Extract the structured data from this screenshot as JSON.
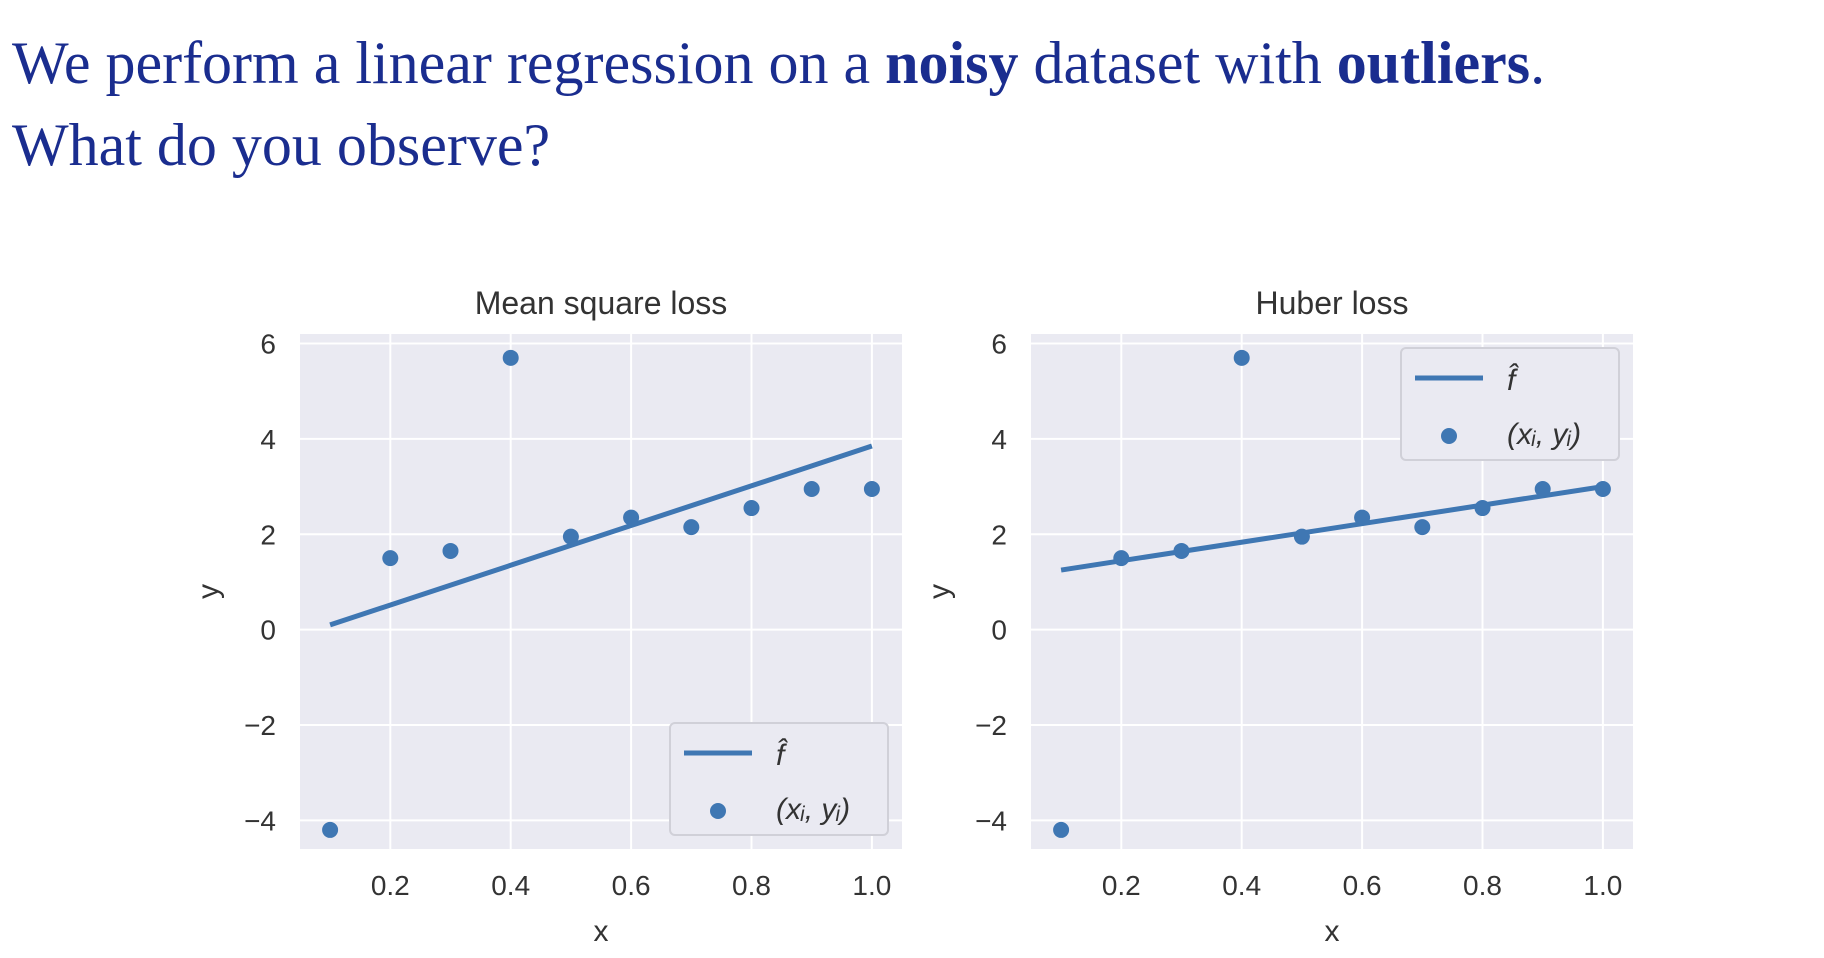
{
  "question": {
    "line1": {
      "p1": "We perform a linear regression on a ",
      "b1": "noisy",
      "p2": " dataset with ",
      "b2": "outliers",
      "p3": "."
    },
    "line2": "What do you observe?"
  },
  "colors": {
    "question_text": "#1a2d8f",
    "plot_bg": "#eaeaf2",
    "grid": "#ffffff",
    "series": "#3f77b3"
  },
  "chart_data": [
    {
      "type": "scatter",
      "title": "Mean square loss",
      "xlabel": "x",
      "ylabel": "y",
      "xlim": [
        0.05,
        1.05
      ],
      "ylim": [
        -4.6,
        6.2
      ],
      "xticks": [
        0.2,
        0.4,
        0.6,
        0.8,
        1.0
      ],
      "xtick_labels": [
        "0.2",
        "0.4",
        "0.6",
        "0.8",
        "1.0"
      ],
      "yticks": [
        6,
        4,
        2,
        0,
        -2,
        -4
      ],
      "ytick_labels": [
        "6",
        "4",
        "2",
        "0",
        "−2",
        "−4"
      ],
      "grid": true,
      "legend_position": "lower-right",
      "series": [
        {
          "name": "f̂",
          "kind": "line",
          "x": [
            0.1,
            1.0
          ],
          "y": [
            0.1,
            3.85
          ]
        },
        {
          "name": "(xᵢ, yᵢ)",
          "kind": "scatter",
          "x": [
            0.1,
            0.2,
            0.3,
            0.4,
            0.5,
            0.6,
            0.7,
            0.8,
            0.9,
            1.0
          ],
          "y": [
            -4.2,
            1.5,
            1.65,
            5.7,
            1.95,
            2.35,
            2.15,
            2.55,
            2.95,
            2.95
          ]
        }
      ]
    },
    {
      "type": "scatter",
      "title": "Huber loss",
      "xlabel": "x",
      "ylabel": "y",
      "xlim": [
        0.05,
        1.05
      ],
      "ylim": [
        -4.6,
        6.2
      ],
      "xticks": [
        0.2,
        0.4,
        0.6,
        0.8,
        1.0
      ],
      "xtick_labels": [
        "0.2",
        "0.4",
        "0.6",
        "0.8",
        "1.0"
      ],
      "yticks": [
        6,
        4,
        2,
        0,
        -2,
        -4
      ],
      "ytick_labels": [
        "6",
        "4",
        "2",
        "0",
        "−2",
        "−4"
      ],
      "grid": true,
      "legend_position": "upper-right",
      "series": [
        {
          "name": "f̂",
          "kind": "line",
          "x": [
            0.1,
            1.0
          ],
          "y": [
            1.25,
            3.0
          ]
        },
        {
          "name": "(xᵢ, yᵢ)",
          "kind": "scatter",
          "x": [
            0.1,
            0.2,
            0.3,
            0.4,
            0.5,
            0.6,
            0.7,
            0.8,
            0.9,
            1.0
          ],
          "y": [
            -4.2,
            1.5,
            1.65,
            5.7,
            1.95,
            2.35,
            2.15,
            2.55,
            2.95,
            2.95
          ]
        }
      ]
    }
  ]
}
